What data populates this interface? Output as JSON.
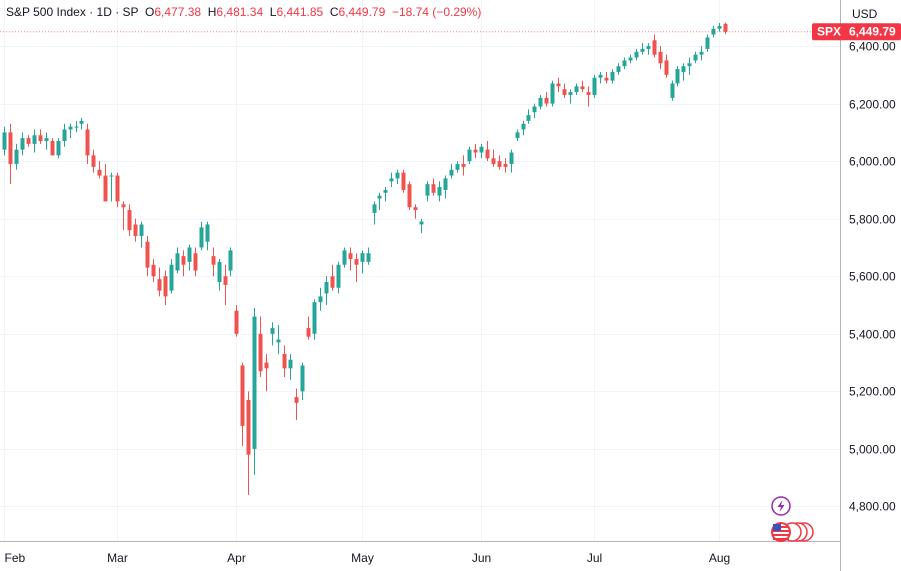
{
  "header": {
    "symbol": "S&P 500 Index",
    "interval": "1D",
    "exchange": "SP",
    "open_label": "O",
    "open": "6,477.38",
    "high_label": "H",
    "high": "6,481.34",
    "low_label": "L",
    "low": "6,441.85",
    "close_label": "C",
    "close": "6,449.79",
    "change": "−18.74 (−0.29%)"
  },
  "currency": "USD",
  "price_tag": {
    "ticker": "SPX",
    "value": "6,449.79",
    "price": 6449.79
  },
  "colors": {
    "up": "#26a69a",
    "down": "#ef5350",
    "grid": "#f0f3fa",
    "axis": "#b2b5be",
    "tag": "#f23645",
    "lightning": "#9c27b0"
  },
  "icons": [
    "lightning-icon",
    "us-flag-icon"
  ],
  "chart_data": {
    "type": "candlestick",
    "title": "S&P 500 Index · 1D · SP",
    "ylim": [
      4680,
      6560
    ],
    "y_ticks": [
      4800,
      5000,
      5200,
      5400,
      5600,
      5800,
      6000,
      6200,
      6400
    ],
    "y_tick_labels": [
      "4,800.00",
      "5,000.00",
      "5,200.00",
      "5,400.00",
      "5,600.00",
      "5,800.00",
      "6,000.00",
      "6,200.00",
      "6,400.00"
    ],
    "x_tick_labels": [
      {
        "label": "Feb",
        "index": 0
      },
      {
        "label": "Mar",
        "index": 19
      },
      {
        "label": "Apr",
        "index": 39
      },
      {
        "label": "May",
        "index": 60
      },
      {
        "label": "Jun",
        "index": 80
      },
      {
        "label": "Jul",
        "index": 99
      },
      {
        "label": "Aug",
        "index": 120
      }
    ],
    "candles": [
      [
        6040,
        6120,
        6020,
        6100
      ],
      [
        6100,
        6130,
        5920,
        5990
      ],
      [
        5990,
        6060,
        5970,
        6040
      ],
      [
        6040,
        6100,
        6020,
        6080
      ],
      [
        6080,
        6090,
        6050,
        6060
      ],
      [
        6060,
        6110,
        6030,
        6090
      ],
      [
        6090,
        6110,
        6060,
        6070
      ],
      [
        6070,
        6100,
        6040,
        6080
      ],
      [
        6070,
        6080,
        6020,
        6020
      ],
      [
        6020,
        6080,
        6010,
        6070
      ],
      [
        6070,
        6130,
        6050,
        6110
      ],
      [
        6110,
        6130,
        6080,
        6120
      ],
      [
        6120,
        6140,
        6100,
        6120
      ],
      [
        6130,
        6150,
        6110,
        6140
      ],
      [
        6110,
        6130,
        5990,
        6020
      ],
      [
        6020,
        6040,
        5960,
        5980
      ],
      [
        5970,
        6000,
        5940,
        5950
      ],
      [
        5950,
        5990,
        5860,
        5860
      ],
      [
        5950,
        5960,
        5860,
        5950
      ],
      [
        5950,
        5960,
        5840,
        5860
      ],
      [
        5850,
        5860,
        5760,
        5840
      ],
      [
        5830,
        5850,
        5740,
        5760
      ],
      [
        5780,
        5800,
        5720,
        5740
      ],
      [
        5740,
        5790,
        5700,
        5780
      ],
      [
        5720,
        5740,
        5600,
        5630
      ],
      [
        5640,
        5660,
        5580,
        5600
      ],
      [
        5590,
        5630,
        5530,
        5550
      ],
      [
        5600,
        5620,
        5500,
        5530
      ],
      [
        5550,
        5660,
        5540,
        5640
      ],
      [
        5620,
        5700,
        5610,
        5680
      ],
      [
        5670,
        5690,
        5600,
        5640
      ],
      [
        5650,
        5710,
        5620,
        5700
      ],
      [
        5680,
        5700,
        5600,
        5620
      ],
      [
        5700,
        5790,
        5690,
        5770
      ],
      [
        5720,
        5790,
        5690,
        5780
      ],
      [
        5670,
        5700,
        5600,
        5640
      ],
      [
        5580,
        5660,
        5550,
        5650
      ],
      [
        5600,
        5640,
        5500,
        5570
      ],
      [
        5620,
        5700,
        5600,
        5690
      ],
      [
        5480,
        5500,
        5390,
        5400
      ],
      [
        5290,
        5300,
        5010,
        5080
      ],
      [
        5170,
        5200,
        4840,
        4980
      ],
      [
        5000,
        5490,
        4910,
        5460
      ],
      [
        5400,
        5460,
        5250,
        5270
      ],
      [
        5300,
        5330,
        5200,
        5280
      ],
      [
        5400,
        5440,
        5360,
        5420
      ],
      [
        5370,
        5430,
        5330,
        5380
      ],
      [
        5330,
        5360,
        5250,
        5280
      ],
      [
        5280,
        5330,
        5240,
        5310
      ],
      [
        5180,
        5210,
        5100,
        5160
      ],
      [
        5200,
        5300,
        5170,
        5290
      ],
      [
        5420,
        5460,
        5380,
        5390
      ],
      [
        5400,
        5520,
        5380,
        5510
      ],
      [
        5510,
        5560,
        5480,
        5530
      ],
      [
        5540,
        5600,
        5500,
        5580
      ],
      [
        5600,
        5640,
        5550,
        5560
      ],
      [
        5560,
        5650,
        5540,
        5640
      ],
      [
        5640,
        5700,
        5630,
        5690
      ],
      [
        5680,
        5700,
        5620,
        5660
      ],
      [
        5660,
        5680,
        5580,
        5640
      ],
      [
        5650,
        5690,
        5610,
        5680
      ],
      [
        5650,
        5700,
        5640,
        5680
      ],
      [
        5820,
        5860,
        5780,
        5850
      ],
      [
        5870,
        5890,
        5830,
        5880
      ],
      [
        5890,
        5910,
        5860,
        5900
      ],
      [
        5930,
        5960,
        5910,
        5940
      ],
      [
        5940,
        5970,
        5920,
        5960
      ],
      [
        5960,
        5970,
        5890,
        5900
      ],
      [
        5920,
        5930,
        5830,
        5840
      ],
      [
        5840,
        5850,
        5800,
        5830
      ],
      [
        5780,
        5800,
        5750,
        5790
      ],
      [
        5880,
        5930,
        5860,
        5920
      ],
      [
        5920,
        5940,
        5880,
        5890
      ],
      [
        5880,
        5930,
        5860,
        5910
      ],
      [
        5900,
        5950,
        5870,
        5940
      ],
      [
        5950,
        5990,
        5940,
        5970
      ],
      [
        5970,
        6000,
        5960,
        5990
      ],
      [
        5990,
        6020,
        5950,
        5980
      ],
      [
        6000,
        6050,
        5990,
        6040
      ],
      [
        6040,
        6060,
        6010,
        6030
      ],
      [
        6030,
        6060,
        6010,
        6050
      ],
      [
        6040,
        6070,
        6000,
        6010
      ],
      [
        6010,
        6040,
        5980,
        5990
      ],
      [
        6000,
        6020,
        5970,
        5980
      ],
      [
        5990,
        6010,
        5960,
        5980
      ],
      [
        5990,
        6040,
        5960,
        6030
      ],
      [
        6080,
        6110,
        6070,
        6100
      ],
      [
        6110,
        6140,
        6090,
        6130
      ],
      [
        6140,
        6180,
        6130,
        6160
      ],
      [
        6170,
        6200,
        6150,
        6190
      ],
      [
        6190,
        6230,
        6180,
        6220
      ],
      [
        6220,
        6240,
        6190,
        6200
      ],
      [
        6200,
        6280,
        6190,
        6270
      ],
      [
        6270,
        6290,
        6240,
        6260
      ],
      [
        6250,
        6270,
        6220,
        6230
      ],
      [
        6230,
        6250,
        6200,
        6240
      ],
      [
        6240,
        6270,
        6230,
        6260
      ],
      [
        6260,
        6280,
        6240,
        6250
      ],
      [
        6240,
        6260,
        6190,
        6230
      ],
      [
        6230,
        6300,
        6220,
        6290
      ],
      [
        6290,
        6310,
        6270,
        6300
      ],
      [
        6290,
        6310,
        6270,
        6280
      ],
      [
        6280,
        6320,
        6270,
        6310
      ],
      [
        6310,
        6340,
        6300,
        6330
      ],
      [
        6330,
        6360,
        6320,
        6350
      ],
      [
        6350,
        6370,
        6340,
        6360
      ],
      [
        6360,
        6390,
        6350,
        6380
      ],
      [
        6380,
        6410,
        6370,
        6390
      ],
      [
        6390,
        6410,
        6370,
        6400
      ],
      [
        6420,
        6440,
        6360,
        6370
      ],
      [
        6380,
        6400,
        6320,
        6340
      ],
      [
        6350,
        6370,
        6290,
        6300
      ],
      [
        6220,
        6280,
        6210,
        6270
      ],
      [
        6270,
        6330,
        6260,
        6320
      ],
      [
        6310,
        6340,
        6280,
        6330
      ],
      [
        6330,
        6360,
        6300,
        6340
      ],
      [
        6350,
        6380,
        6340,
        6370
      ],
      [
        6370,
        6400,
        6350,
        6380
      ],
      [
        6390,
        6440,
        6380,
        6430
      ],
      [
        6440,
        6470,
        6430,
        6460
      ],
      [
        6460,
        6480,
        6450,
        6470
      ],
      [
        6477.38,
        6481.34,
        6441.85,
        6449.79
      ]
    ]
  }
}
